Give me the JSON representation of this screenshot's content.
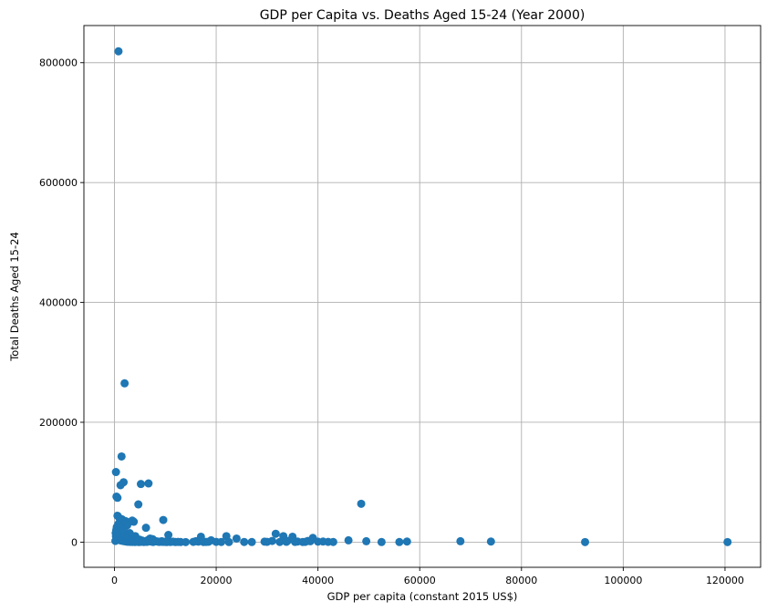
{
  "chart_data": {
    "type": "scatter",
    "title": "GDP per Capita vs. Deaths Aged 15-24 (Year 2000)",
    "xlabel": "GDP per capita (constant 2015 US$)",
    "ylabel": "Total Deaths Aged 15-24",
    "xlim": [
      -6000,
      127000
    ],
    "ylim": [
      -42000,
      862000
    ],
    "xticks": [
      0,
      20000,
      40000,
      60000,
      80000,
      100000,
      120000
    ],
    "xtick_labels": [
      "0",
      "20000",
      "40000",
      "60000",
      "80000",
      "100000",
      "120000"
    ],
    "yticks": [
      0,
      200000,
      400000,
      600000,
      800000
    ],
    "ytick_labels": [
      "0",
      "200000",
      "400000",
      "600000",
      "800000"
    ],
    "grid": true,
    "color": "#1f77b4",
    "points": [
      [
        800,
        819000
      ],
      [
        2000,
        265000
      ],
      [
        1400,
        143000
      ],
      [
        300,
        117000
      ],
      [
        1800,
        100000
      ],
      [
        1200,
        95000
      ],
      [
        5200,
        97000
      ],
      [
        6700,
        98000
      ],
      [
        400,
        76000
      ],
      [
        600,
        74000
      ],
      [
        4700,
        63000
      ],
      [
        48500,
        64000
      ],
      [
        9600,
        37000
      ],
      [
        3500,
        36000
      ],
      [
        3800,
        34000
      ],
      [
        600,
        44000
      ],
      [
        1000,
        40000
      ],
      [
        1500,
        38000
      ],
      [
        2200,
        35000
      ],
      [
        2800,
        33000
      ],
      [
        1700,
        30000
      ],
      [
        2500,
        28000
      ],
      [
        900,
        26000
      ],
      [
        6200,
        24000
      ],
      [
        500,
        22000
      ],
      [
        1300,
        20000
      ],
      [
        700,
        18000
      ],
      [
        2100,
        16000
      ],
      [
        3000,
        15000
      ],
      [
        1100,
        14000
      ],
      [
        1600,
        13000
      ],
      [
        2400,
        12000
      ],
      [
        3300,
        11000
      ],
      [
        10600,
        12000
      ],
      [
        4100,
        10000
      ],
      [
        3900,
        8000
      ],
      [
        1900,
        9000
      ],
      [
        400,
        7000
      ],
      [
        600,
        5000
      ],
      [
        900,
        4000
      ],
      [
        1200,
        3000
      ],
      [
        1400,
        2500
      ],
      [
        1700,
        2000
      ],
      [
        2000,
        1500
      ],
      [
        2300,
        1000
      ],
      [
        2600,
        800
      ],
      [
        2900,
        600
      ],
      [
        3200,
        500
      ],
      [
        3600,
        400
      ],
      [
        4000,
        300
      ],
      [
        4400,
        2000
      ],
      [
        4800,
        1500
      ],
      [
        5200,
        1000
      ],
      [
        5600,
        800
      ],
      [
        6000,
        700
      ],
      [
        6500,
        3000
      ],
      [
        7000,
        6000
      ],
      [
        7500,
        5000
      ],
      [
        8000,
        2000
      ],
      [
        8500,
        1000
      ],
      [
        9000,
        700
      ],
      [
        9500,
        500
      ],
      [
        10000,
        400
      ],
      [
        11000,
        300
      ],
      [
        12000,
        200
      ],
      [
        13000,
        150
      ],
      [
        14000,
        100
      ],
      [
        15500,
        500
      ],
      [
        16500,
        800
      ],
      [
        17000,
        9000
      ],
      [
        18000,
        400
      ],
      [
        19000,
        3000
      ],
      [
        20000,
        500
      ],
      [
        22000,
        10000
      ],
      [
        22500,
        200
      ],
      [
        24000,
        6000
      ],
      [
        25500,
        300
      ],
      [
        29500,
        800
      ],
      [
        31000,
        2000
      ],
      [
        31700,
        14000
      ],
      [
        32500,
        300
      ],
      [
        33200,
        10000
      ],
      [
        34000,
        2000
      ],
      [
        35000,
        9000
      ],
      [
        36000,
        1000
      ],
      [
        37500,
        500
      ],
      [
        38000,
        2000
      ],
      [
        39000,
        7000
      ],
      [
        40000,
        800
      ],
      [
        41000,
        1000
      ],
      [
        42000,
        500
      ],
      [
        43000,
        300
      ],
      [
        46000,
        3000
      ],
      [
        49500,
        1500
      ],
      [
        52500,
        200
      ],
      [
        56000,
        200
      ],
      [
        57500,
        1000
      ],
      [
        68000,
        1500
      ],
      [
        74000,
        1000
      ],
      [
        92500,
        100
      ],
      [
        120500,
        100
      ],
      [
        200,
        2000
      ],
      [
        300,
        10000
      ],
      [
        250,
        15000
      ],
      [
        350,
        20000
      ],
      [
        450,
        25000
      ],
      [
        550,
        12000
      ],
      [
        650,
        9000
      ],
      [
        750,
        30000
      ],
      [
        850,
        6000
      ],
      [
        950,
        11000
      ],
      [
        1050,
        19000
      ],
      [
        1150,
        8000
      ],
      [
        1250,
        24000
      ],
      [
        1350,
        5000
      ],
      [
        1450,
        17000
      ],
      [
        1550,
        4000
      ],
      [
        1650,
        7000
      ],
      [
        1750,
        21000
      ],
      [
        1850,
        3000
      ],
      [
        1950,
        10000
      ],
      [
        2050,
        6000
      ],
      [
        2150,
        2000
      ],
      [
        2250,
        8000
      ],
      [
        2350,
        4000
      ],
      [
        2450,
        1000
      ],
      [
        2550,
        7000
      ],
      [
        2650,
        3000
      ],
      [
        2750,
        5000
      ],
      [
        2850,
        2000
      ],
      [
        2950,
        9000
      ],
      [
        3050,
        1000
      ],
      [
        3150,
        4000
      ],
      [
        3250,
        2000
      ],
      [
        3350,
        6000
      ],
      [
        3450,
        500
      ],
      [
        3550,
        3000
      ],
      [
        3650,
        1500
      ],
      [
        3750,
        8000
      ],
      [
        3850,
        2500
      ],
      [
        3950,
        1000
      ],
      [
        4050,
        4000
      ],
      [
        4150,
        500
      ],
      [
        4250,
        2000
      ],
      [
        4350,
        6000
      ],
      [
        4450,
        1000
      ],
      [
        4550,
        3000
      ],
      [
        4650,
        500
      ],
      [
        4750,
        1500
      ],
      [
        4850,
        200
      ],
      [
        5000,
        4000
      ],
      [
        5300,
        600
      ],
      [
        5500,
        2500
      ],
      [
        5800,
        300
      ],
      [
        6100,
        1200
      ],
      [
        6400,
        500
      ],
      [
        6800,
        1800
      ],
      [
        7200,
        900
      ],
      [
        7600,
        300
      ],
      [
        8200,
        1200
      ],
      [
        8800,
        400
      ],
      [
        9300,
        1500
      ],
      [
        9800,
        600
      ],
      [
        10300,
        200
      ],
      [
        11500,
        800
      ],
      [
        12500,
        400
      ],
      [
        16000,
        1500
      ],
      [
        17500,
        300
      ],
      [
        18500,
        700
      ],
      [
        21000,
        300
      ],
      [
        27000,
        200
      ],
      [
        30000,
        500
      ],
      [
        33800,
        600
      ],
      [
        35500,
        400
      ],
      [
        37000,
        300
      ],
      [
        38500,
        1500
      ]
    ]
  }
}
